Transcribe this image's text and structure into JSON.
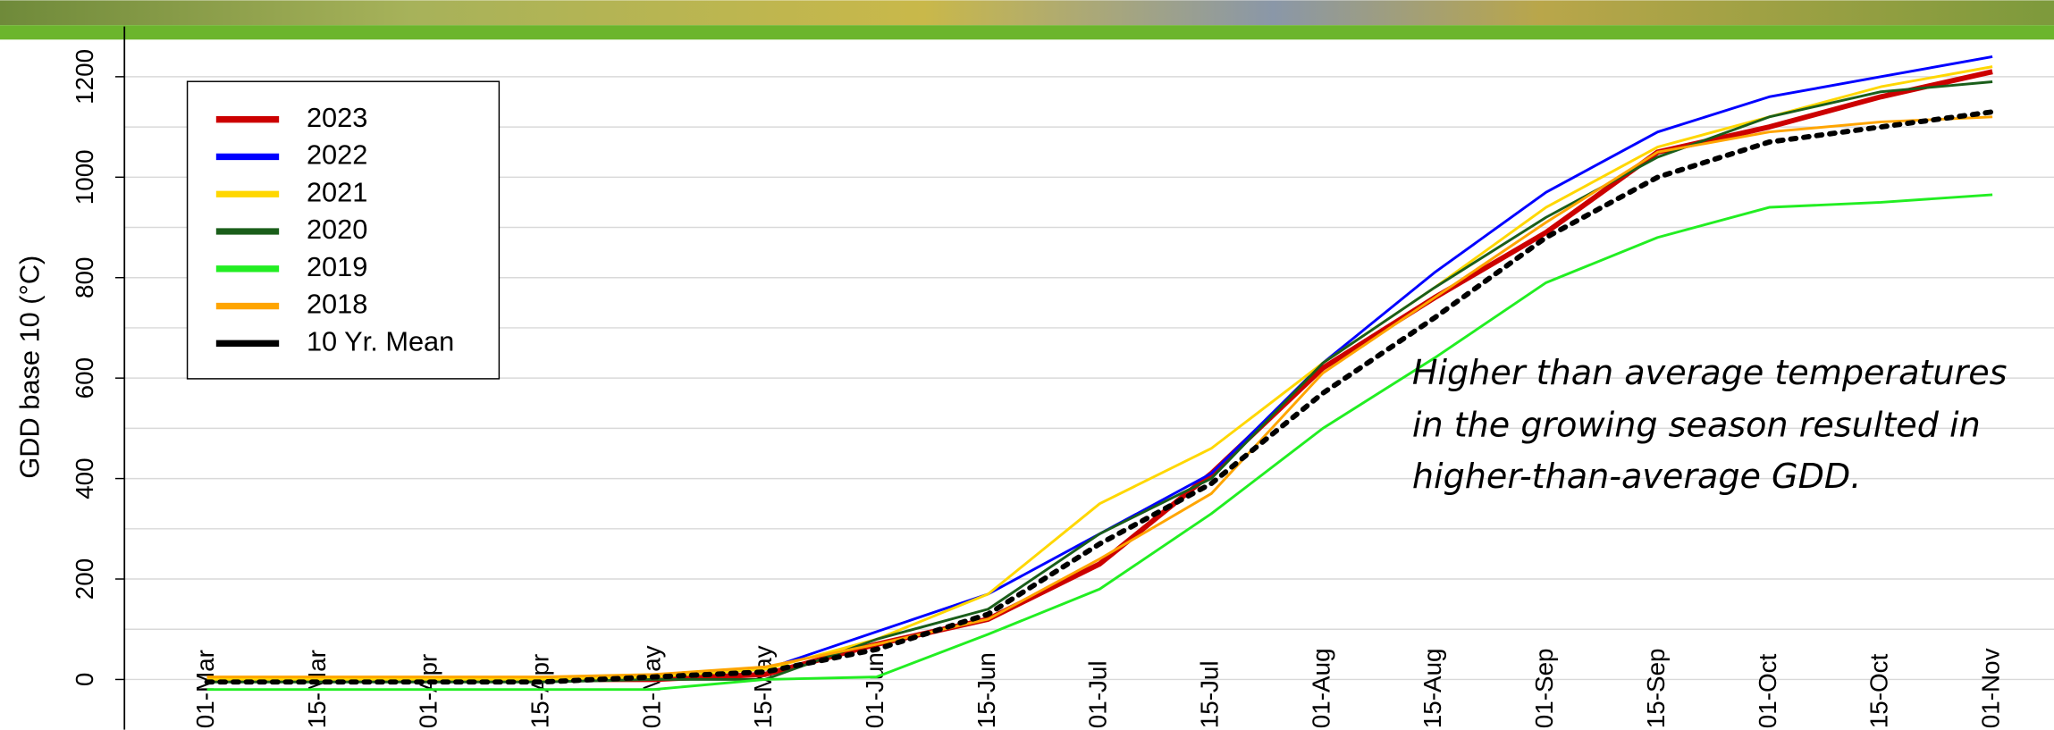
{
  "chart_data": {
    "type": "line",
    "y_label": "GDD base 10 (°C)",
    "annotation": [
      "Higher than average temperatures",
      "in the growing season resulted in",
      "higher-than-average GDD."
    ],
    "categories": [
      "01-Mar",
      "15-Mar",
      "01-Apr",
      "15-Apr",
      "01-May",
      "15-May",
      "01-Jun",
      "15-Jun",
      "01-Jul",
      "15-Jul",
      "01-Aug",
      "15-Aug",
      "01-Sep",
      "15-Sep",
      "01-Oct",
      "15-Oct",
      "01-Nov"
    ],
    "ylim": [
      -100,
      1300
    ],
    "yticks": [
      0,
      200,
      400,
      600,
      800,
      1000,
      1200
    ],
    "minor_grid": [
      100,
      300,
      500,
      700,
      900,
      1100
    ],
    "grid": true,
    "legend": "upper left",
    "series": [
      {
        "name": "2023",
        "color": "#cc0000",
        "values": [
          0,
          0,
          0,
          0,
          0,
          10,
          70,
          120,
          230,
          410,
          620,
          760,
          890,
          1050,
          1100,
          1160,
          1210
        ]
      },
      {
        "name": "2022",
        "color": "#0000ff",
        "values": [
          0,
          0,
          0,
          0,
          5,
          20,
          95,
          170,
          290,
          410,
          630,
          810,
          970,
          1090,
          1160,
          1200,
          1240
        ]
      },
      {
        "name": "2021",
        "color": "#ffd700",
        "values": [
          0,
          0,
          0,
          0,
          5,
          20,
          80,
          170,
          350,
          460,
          630,
          780,
          940,
          1060,
          1120,
          1180,
          1220
        ]
      },
      {
        "name": "2020",
        "color": "#1a5e1a",
        "values": [
          -5,
          -5,
          -5,
          -5,
          0,
          0,
          80,
          140,
          290,
          400,
          630,
          780,
          920,
          1040,
          1120,
          1170,
          1190
        ]
      },
      {
        "name": "2019",
        "color": "#22ee22",
        "values": [
          -20,
          -20,
          -20,
          -20,
          -20,
          0,
          5,
          90,
          180,
          330,
          500,
          640,
          790,
          880,
          940,
          950,
          965
        ]
      },
      {
        "name": "2018",
        "color": "#ffa500",
        "values": [
          5,
          5,
          5,
          5,
          10,
          25,
          70,
          120,
          240,
          370,
          610,
          760,
          910,
          1050,
          1090,
          1110,
          1120
        ]
      },
      {
        "name": "10 Yr. Mean",
        "color": "#000000",
        "dashed": true,
        "values": [
          -5,
          -5,
          -5,
          -5,
          5,
          15,
          60,
          130,
          270,
          390,
          570,
          720,
          880,
          1000,
          1070,
          1100,
          1130
        ]
      }
    ]
  }
}
